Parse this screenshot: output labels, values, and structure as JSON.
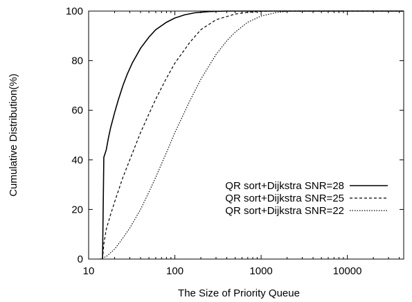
{
  "chart_data": {
    "type": "line",
    "xlabel": "The Size of Priority Queue",
    "ylabel": "Cumulative Distribution(%)",
    "x_scale": "log",
    "xlim": [
      10,
      45000
    ],
    "ylim": [
      0,
      100
    ],
    "x_ticks": [
      {
        "value": 10,
        "label": "10"
      },
      {
        "value": 100,
        "label": "100"
      },
      {
        "value": 1000,
        "label": "1000"
      },
      {
        "value": 10000,
        "label": "10000"
      }
    ],
    "y_ticks": [
      {
        "value": 0,
        "label": "0"
      },
      {
        "value": 20,
        "label": "20"
      },
      {
        "value": 40,
        "label": "40"
      },
      {
        "value": 60,
        "label": "60"
      },
      {
        "value": 80,
        "label": "80"
      },
      {
        "value": 100,
        "label": "100"
      }
    ],
    "grid": false,
    "legend_position": "lower-right",
    "series": [
      {
        "name": "QR sort+Dijkstra SNR=28",
        "dash": "solid",
        "color": "#000000",
        "points": [
          [
            14.5,
            0
          ],
          [
            15,
            41
          ],
          [
            16,
            44
          ],
          [
            17,
            49
          ],
          [
            18,
            53
          ],
          [
            20,
            59
          ],
          [
            22,
            64
          ],
          [
            25,
            70
          ],
          [
            28,
            74.5
          ],
          [
            32,
            79
          ],
          [
            40,
            85
          ],
          [
            50,
            89.5
          ],
          [
            60,
            92.5
          ],
          [
            80,
            95.5
          ],
          [
            100,
            97.2
          ],
          [
            130,
            98.5
          ],
          [
            170,
            99.3
          ],
          [
            250,
            99.8
          ],
          [
            400,
            100
          ],
          [
            45000,
            100
          ]
        ]
      },
      {
        "name": "QR sort+Dijkstra SNR=25",
        "dash": "dashed",
        "color": "#000000",
        "points": [
          [
            14.5,
            0
          ],
          [
            15,
            6
          ],
          [
            16,
            12
          ],
          [
            18,
            18
          ],
          [
            20,
            23
          ],
          [
            25,
            33
          ],
          [
            30,
            40
          ],
          [
            40,
            51
          ],
          [
            50,
            58.5
          ],
          [
            60,
            64.5
          ],
          [
            80,
            73
          ],
          [
            100,
            79
          ],
          [
            150,
            87.5
          ],
          [
            200,
            92.5
          ],
          [
            300,
            96.5
          ],
          [
            500,
            98.8
          ],
          [
            700,
            99.5
          ],
          [
            1000,
            99.9
          ],
          [
            1300,
            100
          ],
          [
            45000,
            100
          ]
        ]
      },
      {
        "name": "QR sort+Dijkstra SNR=22",
        "dash": "dotted",
        "color": "#000000",
        "points": [
          [
            13.5,
            0
          ],
          [
            16,
            1
          ],
          [
            20,
            4
          ],
          [
            25,
            8.5
          ],
          [
            30,
            12.5
          ],
          [
            40,
            20
          ],
          [
            50,
            27
          ],
          [
            60,
            33
          ],
          [
            80,
            43
          ],
          [
            100,
            51
          ],
          [
            150,
            64
          ],
          [
            200,
            72.5
          ],
          [
            300,
            82.5
          ],
          [
            400,
            88
          ],
          [
            500,
            91.5
          ],
          [
            700,
            95.5
          ],
          [
            1000,
            98
          ],
          [
            1500,
            99.4
          ],
          [
            2000,
            99.9
          ],
          [
            2500,
            100
          ],
          [
            45000,
            100
          ]
        ]
      }
    ]
  }
}
